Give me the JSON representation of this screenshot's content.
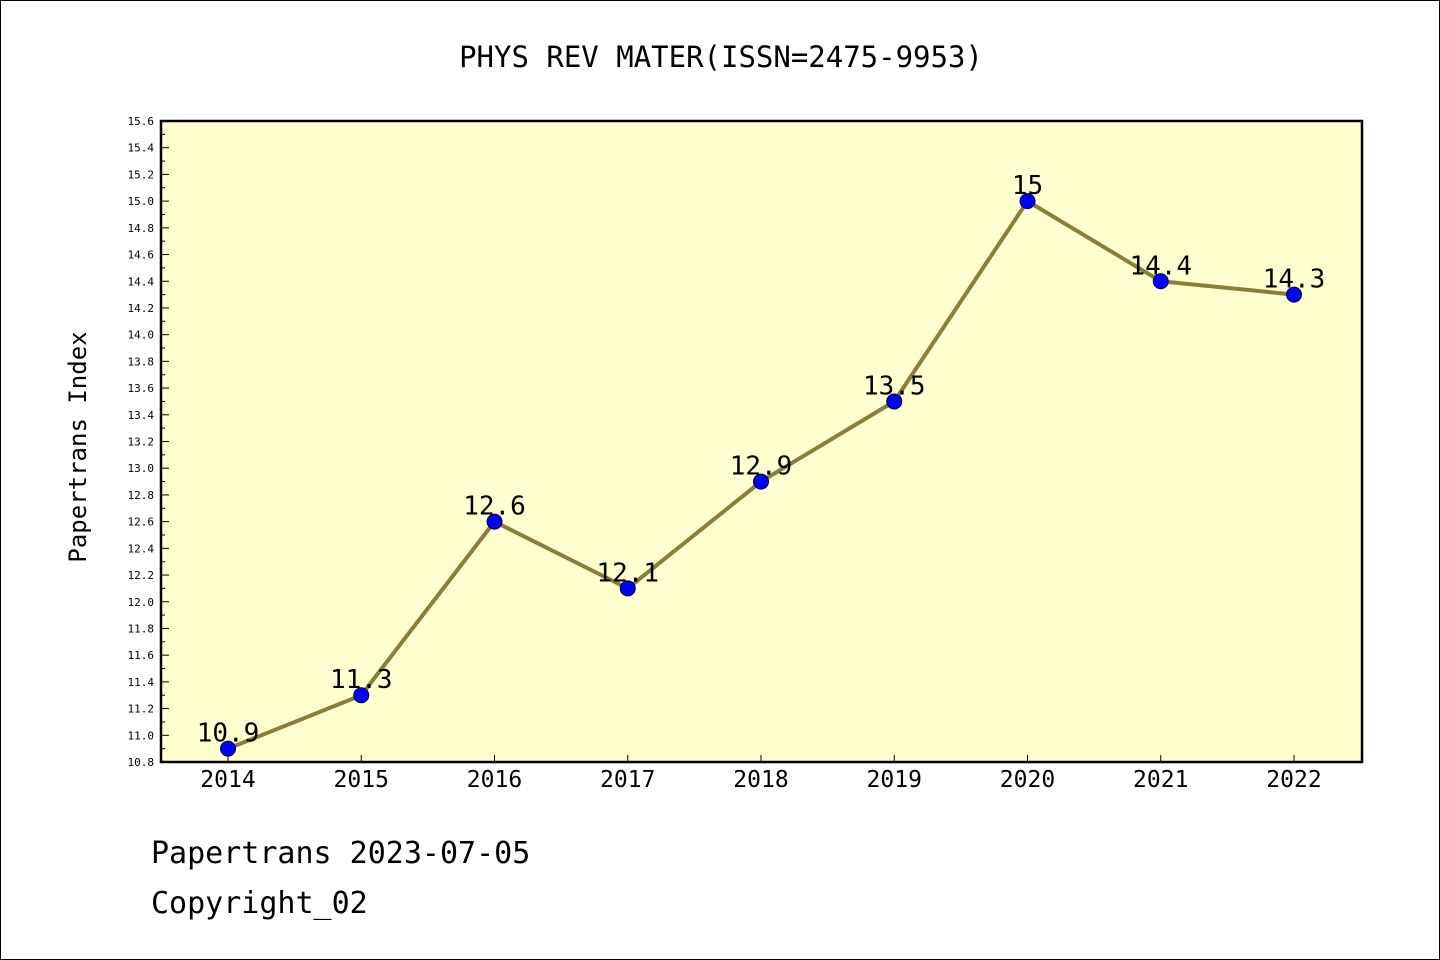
{
  "chart_data": {
    "type": "line",
    "title": "PHYS REV MATER(ISSN=2475-9953)",
    "xlabel": "",
    "ylabel": "Papertrans Index",
    "categories": [
      "2014",
      "2015",
      "2016",
      "2017",
      "2018",
      "2019",
      "2020",
      "2021",
      "2022"
    ],
    "series": [
      {
        "values": [
          10.9,
          11.3,
          12.6,
          12.1,
          12.9,
          13.5,
          15.0,
          14.4,
          14.3
        ]
      }
    ],
    "data_labels": [
      "10.9",
      "11.3",
      "12.6",
      "12.1",
      "12.9",
      "13.5",
      "15",
      "14.4",
      "14.3"
    ],
    "ylim": [
      10.8,
      15.6
    ],
    "yticks": [
      "10.8",
      "11.0",
      "11.2",
      "11.4",
      "11.6",
      "11.8",
      "12.0",
      "12.2",
      "12.4",
      "12.6",
      "12.8",
      "13.0",
      "13.2",
      "13.4",
      "13.6",
      "13.8",
      "14.0",
      "14.2",
      "14.4",
      "14.6",
      "14.8",
      "15.0",
      "15.2",
      "15.4",
      "15.6"
    ],
    "grid": false,
    "colors": {
      "plot_background": "#ffffd0",
      "line": "#8b7d3a",
      "marker": "#0000ff"
    }
  },
  "footer": {
    "line1": "Papertrans 2023-07-05",
    "line2": "Copyright_02"
  }
}
